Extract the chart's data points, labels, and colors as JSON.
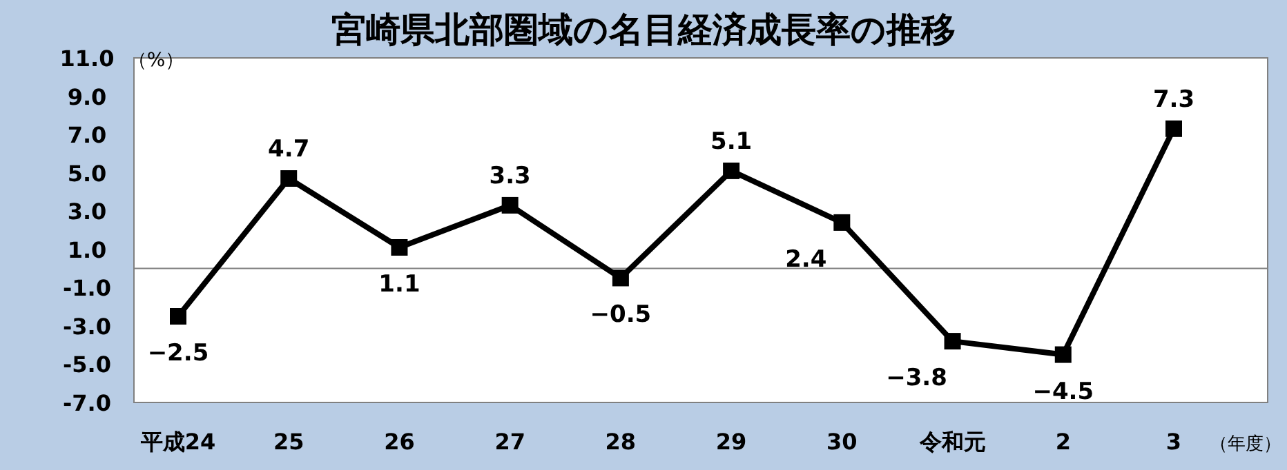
{
  "chart_data": {
    "type": "line",
    "title": "宮崎県北部圏域の名目経済成長率の推移",
    "xlabel": "（年度）",
    "ylabel": "（%）",
    "categories": [
      "平成24",
      "25",
      "26",
      "27",
      "28",
      "29",
      "30",
      "令和元",
      "2",
      "3"
    ],
    "series": [
      {
        "color": "#000000",
        "values": [
          -2.5,
          4.7,
          1.1,
          3.3,
          -0.5,
          5.1,
          2.4,
          -3.8,
          -4.5,
          7.3
        ],
        "value_labels": [
          "−2.5",
          "4.7",
          "1.1",
          "3.3",
          "−0.5",
          "5.1",
          "2.4",
          "−3.8",
          "−4.5",
          "7.3"
        ]
      }
    ],
    "ylim": [
      -7,
      11
    ],
    "yticks": [
      {
        "value": 11,
        "label": "11.0"
      },
      {
        "value": 9,
        "label": "9.0"
      },
      {
        "value": 7,
        "label": "7.0"
      },
      {
        "value": 5,
        "label": "5.0"
      },
      {
        "value": 3,
        "label": "3.0"
      },
      {
        "value": 1,
        "label": "1.0"
      },
      {
        "value": -1,
        "label": "-1.0"
      },
      {
        "value": -3,
        "label": "-3.0"
      },
      {
        "value": -5,
        "label": "-5.0"
      },
      {
        "value": -7,
        "label": "-7.0"
      }
    ],
    "ref_lines": [
      {
        "axis": "y",
        "value": 0,
        "color": "#808080"
      }
    ],
    "marker": "square",
    "line_style": "solid"
  }
}
